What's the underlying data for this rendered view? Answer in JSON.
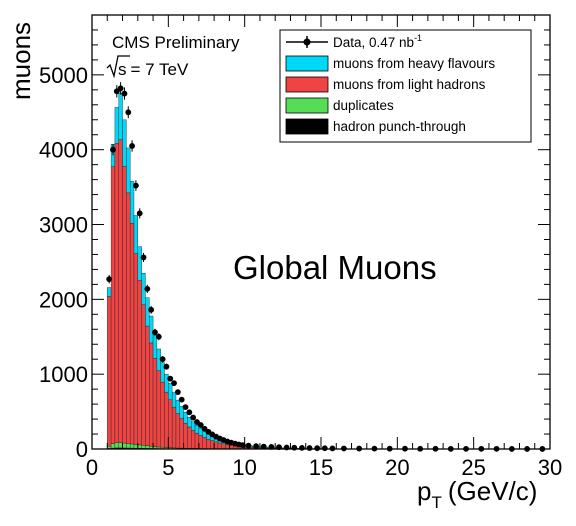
{
  "chart_data": {
    "type": "histogram",
    "xlabel": "p_T (GeV/c)",
    "xlabel_main": "p",
    "xlabel_sub": "T",
    "xlabel_units": "(GeV/c)",
    "ylabel": "muons",
    "xlim": [
      0,
      30
    ],
    "ylim": [
      0,
      5800
    ],
    "x_ticks": [
      0,
      5,
      10,
      15,
      20,
      25,
      30
    ],
    "y_ticks": [
      0,
      1000,
      2000,
      3000,
      4000,
      5000
    ],
    "grid": false,
    "legend_position": "top-right",
    "annotations": {
      "experiment": "CMS Preliminary",
      "energy_sqrt": "s",
      "energy_value": "= 7 TeV",
      "overlay": "Global Muons"
    },
    "legend": [
      {
        "label": "Data, 0.47 nb",
        "superscript": "-1",
        "kind": "data-point",
        "color": "#000000"
      },
      {
        "label": "muons from heavy flavours",
        "kind": "fill",
        "color": "#00d8f8"
      },
      {
        "label": "muons from light hadrons",
        "kind": "fill",
        "color": "#ee4444"
      },
      {
        "label": "duplicates",
        "kind": "fill",
        "color": "#55dd55"
      },
      {
        "label": "hadron punch-through",
        "kind": "fill",
        "color": "#000000"
      }
    ],
    "bin_width": 0.25,
    "x_start": 1.0,
    "series": [
      {
        "name": "muons from light hadrons",
        "color": "#ee4444",
        "values": [
          2000,
          3700,
          4000,
          4050,
          3700,
          3350,
          2950,
          2550,
          2200,
          1880,
          1600,
          1380,
          1180,
          1020,
          870,
          740,
          640,
          540,
          460,
          395,
          335,
          285,
          240,
          205,
          175,
          150,
          128,
          108,
          92,
          78,
          66,
          56,
          48,
          40,
          34,
          29,
          25,
          21,
          18,
          15,
          13,
          11,
          9,
          8,
          7,
          6,
          5,
          4,
          4,
          3,
          3,
          3,
          2,
          2,
          2,
          2,
          2,
          2,
          1,
          1
        ]
      },
      {
        "name": "muons from heavy flavours",
        "color": "#00d8f8",
        "values": [
          120,
          300,
          480,
          620,
          620,
          600,
          560,
          510,
          450,
          420,
          380,
          360,
          320,
          290,
          260,
          240,
          220,
          200,
          180,
          162,
          145,
          130,
          118,
          105,
          94,
          84,
          76,
          68,
          60,
          54,
          48,
          43,
          38,
          34,
          30,
          27,
          24,
          21,
          19,
          17,
          15,
          13,
          12,
          10,
          9,
          8,
          7,
          6,
          5,
          5,
          4,
          4,
          3,
          3,
          3,
          2,
          2,
          2,
          2,
          2
        ]
      },
      {
        "name": "duplicates",
        "color": "#55dd55",
        "values": [
          30,
          60,
          70,
          70,
          65,
          60,
          55,
          50,
          45,
          40,
          35,
          30,
          26,
          22,
          19,
          16,
          14,
          12,
          10,
          9,
          8,
          7,
          6,
          5,
          4,
          4,
          3,
          3,
          3,
          2,
          2,
          2,
          2,
          1,
          1,
          1,
          1,
          1,
          1,
          1,
          1,
          1,
          1,
          1,
          1,
          1,
          1,
          1,
          1,
          1,
          0,
          0,
          0,
          0,
          0,
          0,
          0,
          0,
          0,
          0
        ]
      },
      {
        "name": "hadron punch-through",
        "color": "#000000",
        "values": [
          8,
          12,
          15,
          15,
          14,
          13,
          12,
          11,
          10,
          9,
          8,
          7,
          6,
          5,
          5,
          4,
          4,
          3,
          3,
          3,
          2,
          2,
          2,
          2,
          2,
          1,
          1,
          1,
          1,
          1,
          1,
          1,
          1,
          1,
          1,
          1,
          1,
          1,
          1,
          1,
          1,
          1,
          1,
          1,
          1,
          1,
          1,
          1,
          1,
          1,
          0,
          0,
          0,
          0,
          0,
          0,
          0,
          0,
          0,
          0
        ]
      }
    ],
    "data_points": {
      "name": "Data, 0.47 nb-1",
      "x": [
        1.125,
        1.375,
        1.625,
        1.875,
        2.125,
        2.375,
        2.625,
        2.875,
        3.125,
        3.375,
        3.625,
        3.875,
        4.125,
        4.375,
        4.625,
        4.875,
        5.125,
        5.375,
        5.625,
        5.875,
        6.125,
        6.375,
        6.625,
        6.875,
        7.125,
        7.375,
        7.625,
        7.875,
        8.125,
        8.375,
        8.625,
        8.875,
        9.125,
        9.375,
        9.625,
        9.875,
        10.25,
        10.75,
        11.25,
        11.75,
        12.25,
        12.75,
        13.25,
        13.75,
        14.25,
        14.75,
        15.25,
        15.75,
        16.5,
        17.5,
        18.5,
        19.5,
        20.5,
        21.5,
        22.5,
        23.5,
        24.5,
        25.5,
        26.5,
        27.5,
        28.5,
        29.5
      ],
      "y": [
        2270,
        4000,
        4780,
        4820,
        4750,
        4500,
        4050,
        3520,
        3150,
        2560,
        2140,
        1860,
        1560,
        1500,
        1200,
        1100,
        940,
        880,
        760,
        660,
        560,
        490,
        420,
        360,
        320,
        270,
        230,
        195,
        165,
        140,
        120,
        100,
        85,
        72,
        60,
        52,
        44,
        38,
        32,
        28,
        24,
        20,
        17,
        15,
        13,
        11,
        10,
        8,
        7,
        6,
        5,
        4,
        4,
        3,
        3,
        2,
        2,
        2,
        2,
        1,
        1,
        1
      ]
    }
  }
}
